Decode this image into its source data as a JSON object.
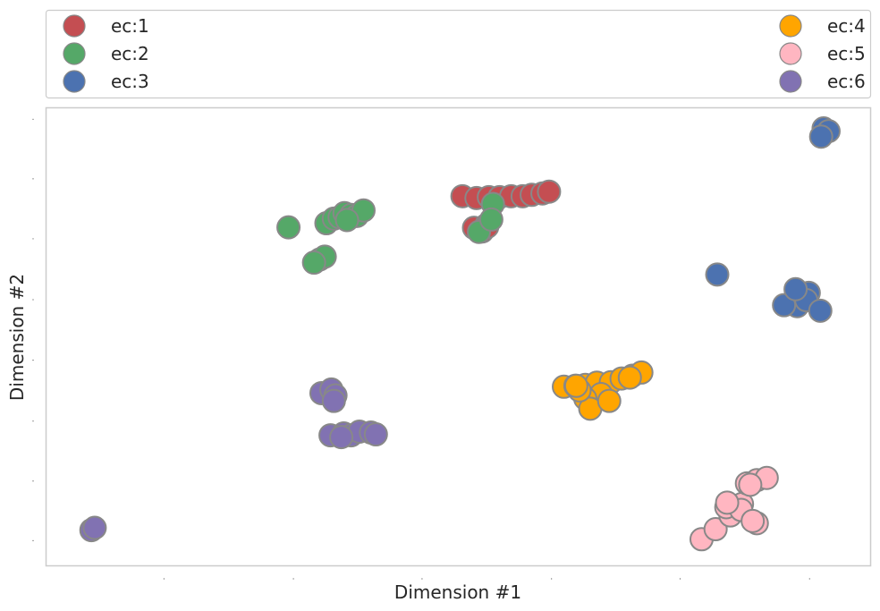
{
  "chart_data": {
    "type": "scatter",
    "xlabel": "Dimension #1",
    "ylabel": "Dimension #2",
    "xlim": [
      0,
      100
    ],
    "ylim": [
      0,
      100
    ],
    "grid": false,
    "legend": "top",
    "marker_edge_color": "#888888",
    "x_ticks": [
      14.3,
      30.0,
      45.6,
      61.3,
      76.9,
      92.6
    ],
    "y_ticks": [
      5.5,
      18.5,
      31.6,
      44.9,
      58.1,
      71.4,
      84.5,
      97.5
    ],
    "series": [
      {
        "name": "ec:1",
        "color": "#c44e52",
        "points": [
          [
            50.5,
            80.7
          ],
          [
            52.2,
            80.3
          ],
          [
            53.7,
            80.5
          ],
          [
            55.0,
            80.5
          ],
          [
            56.4,
            80.7
          ],
          [
            57.8,
            80.7
          ],
          [
            58.9,
            81.0
          ],
          [
            60.2,
            81.3
          ],
          [
            61.0,
            81.7
          ],
          [
            51.9,
            73.8
          ],
          [
            53.4,
            74.4
          ],
          [
            52.9,
            73.0
          ],
          [
            53.5,
            74.0
          ]
        ]
      },
      {
        "name": "ec:2",
        "color": "#55a868",
        "points": [
          [
            29.4,
            73.9
          ],
          [
            34.0,
            74.8
          ],
          [
            34.9,
            75.8
          ],
          [
            35.6,
            76.1
          ],
          [
            36.2,
            77.0
          ],
          [
            37.0,
            76.6
          ],
          [
            37.7,
            76.4
          ],
          [
            38.5,
            77.6
          ],
          [
            36.5,
            75.5
          ],
          [
            33.2,
            66.9
          ],
          [
            33.8,
            67.5
          ],
          [
            32.5,
            66.2
          ],
          [
            54.2,
            79.0
          ],
          [
            52.5,
            72.9
          ],
          [
            54.0,
            75.6
          ]
        ]
      },
      {
        "name": "ec:3",
        "color": "#4c72b0",
        "points": [
          [
            94.3,
            95.5
          ],
          [
            94.9,
            94.9
          ],
          [
            94.0,
            93.7
          ],
          [
            81.4,
            63.6
          ],
          [
            91.7,
            59.0
          ],
          [
            92.5,
            59.6
          ],
          [
            91.1,
            56.7
          ],
          [
            89.5,
            56.9
          ],
          [
            92.2,
            58.0
          ],
          [
            93.9,
            55.7
          ],
          [
            90.9,
            60.4
          ]
        ]
      },
      {
        "name": "ec:4",
        "color": "#ffa500",
        "points": [
          [
            62.8,
            39.1
          ],
          [
            64.2,
            39.3
          ],
          [
            65.4,
            39.5
          ],
          [
            66.8,
            40.0
          ],
          [
            68.5,
            40.1
          ],
          [
            69.8,
            40.9
          ],
          [
            71.1,
            41.5
          ],
          [
            72.2,
            42.2
          ],
          [
            67.3,
            37.5
          ],
          [
            65.4,
            36.5
          ],
          [
            66.0,
            34.3
          ],
          [
            64.7,
            38.3
          ],
          [
            64.3,
            39.3
          ],
          [
            68.3,
            36.0
          ],
          [
            70.8,
            41.1
          ]
        ]
      },
      {
        "name": "ec:5",
        "color": "#ffb6c1",
        "points": [
          [
            79.5,
            5.8
          ],
          [
            81.2,
            8.0
          ],
          [
            83.0,
            11.0
          ],
          [
            84.4,
            13.5
          ],
          [
            82.5,
            12.8
          ],
          [
            84.3,
            12.2
          ],
          [
            85.0,
            18.0
          ],
          [
            86.2,
            18.7
          ],
          [
            87.4,
            19.2
          ],
          [
            85.4,
            17.7
          ],
          [
            86.2,
            9.3
          ],
          [
            85.7,
            9.8
          ],
          [
            82.6,
            13.8
          ]
        ]
      },
      {
        "name": "ec:6",
        "color": "#8172b2",
        "points": [
          [
            33.4,
            37.7
          ],
          [
            34.6,
            38.5
          ],
          [
            35.1,
            37.2
          ],
          [
            34.9,
            36.0
          ],
          [
            34.5,
            28.5
          ],
          [
            36.1,
            28.9
          ],
          [
            37.0,
            28.5
          ],
          [
            38.0,
            29.3
          ],
          [
            39.4,
            29.1
          ],
          [
            40.0,
            28.7
          ],
          [
            35.8,
            28.1
          ],
          [
            5.5,
            7.8
          ],
          [
            5.9,
            8.3
          ]
        ]
      }
    ]
  }
}
